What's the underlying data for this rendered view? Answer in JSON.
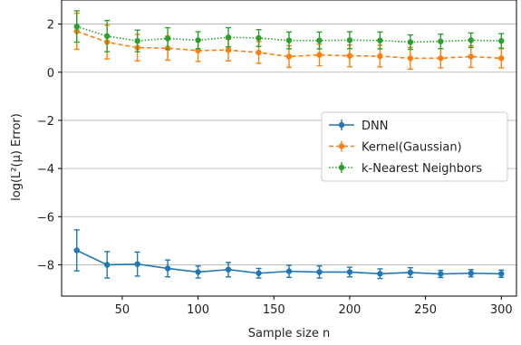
{
  "chart_data": {
    "type": "line",
    "xlabel": "Sample size n",
    "ylabel": "log(L²(μ) Error)",
    "xlim": [
      10,
      310
    ],
    "ylim": [
      -9.3,
      3.0
    ],
    "xticks": [
      50,
      100,
      150,
      200,
      250,
      300
    ],
    "yticks": [
      -8,
      -6,
      -4,
      -2,
      0,
      2
    ],
    "ytick_labels": [
      "−8",
      "−6",
      "−4",
      "−2",
      "0",
      "2"
    ],
    "grid": "horizontal",
    "legend_position": "center-right",
    "x": [
      20,
      40,
      60,
      80,
      100,
      120,
      140,
      160,
      180,
      200,
      220,
      240,
      260,
      280,
      300
    ],
    "series": [
      {
        "name": "DNN",
        "color": "#1f77b4",
        "style": "solid",
        "values": [
          -7.4,
          -8.0,
          -7.97,
          -8.15,
          -8.3,
          -8.2,
          -8.35,
          -8.27,
          -8.3,
          -8.3,
          -8.37,
          -8.32,
          -8.38,
          -8.35,
          -8.37
        ],
        "err": [
          0.85,
          0.55,
          0.5,
          0.35,
          0.25,
          0.3,
          0.2,
          0.25,
          0.25,
          0.2,
          0.2,
          0.2,
          0.15,
          0.15,
          0.15
        ]
      },
      {
        "name": "Kernel(Gaussian)",
        "color": "#ff7f0e",
        "style": "dashed",
        "values": [
          1.7,
          1.25,
          1.02,
          1.0,
          0.9,
          0.92,
          0.82,
          0.65,
          0.72,
          0.68,
          0.67,
          0.58,
          0.58,
          0.65,
          0.58
        ],
        "err": [
          0.75,
          0.7,
          0.55,
          0.5,
          0.45,
          0.45,
          0.45,
          0.45,
          0.45,
          0.45,
          0.45,
          0.45,
          0.4,
          0.45,
          0.4
        ]
      },
      {
        "name": "k-Nearest Neighbors",
        "color": "#2ca02c",
        "style": "dotted",
        "values": [
          1.9,
          1.5,
          1.3,
          1.4,
          1.33,
          1.45,
          1.42,
          1.32,
          1.32,
          1.33,
          1.32,
          1.25,
          1.28,
          1.33,
          1.3
        ],
        "err": [
          0.65,
          0.65,
          0.45,
          0.45,
          0.35,
          0.4,
          0.35,
          0.35,
          0.35,
          0.35,
          0.35,
          0.3,
          0.3,
          0.3,
          0.3
        ]
      }
    ]
  }
}
